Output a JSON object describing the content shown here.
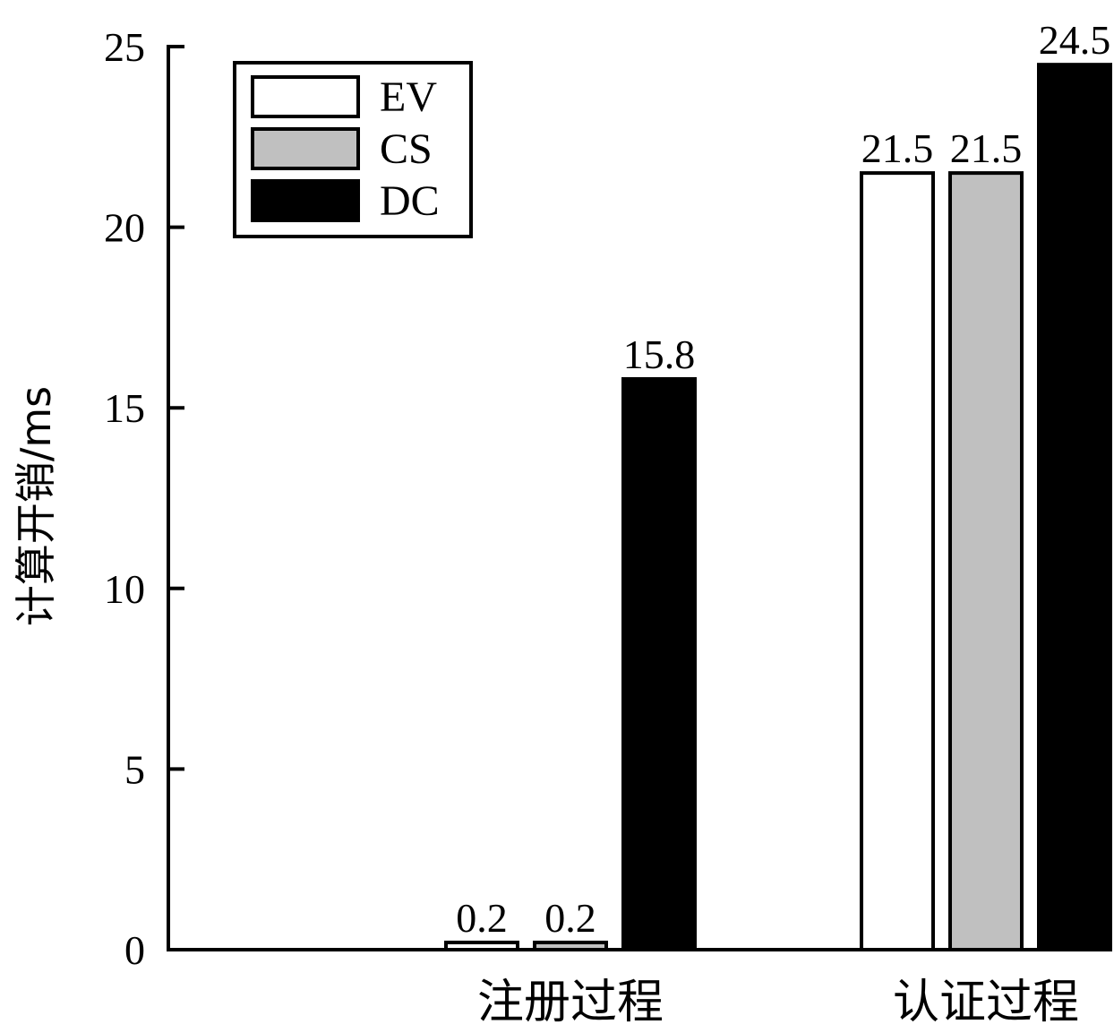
{
  "chart_data": {
    "type": "bar",
    "title": "",
    "ylabel": "计算开销/ms",
    "xlabel": "",
    "ylim": [
      0,
      25
    ],
    "yticks": [
      0,
      5,
      10,
      15,
      20,
      25
    ],
    "categories": [
      "注册过程",
      "认证过程"
    ],
    "series": [
      {
        "name": "EV",
        "values": [
          0.2,
          21.5
        ],
        "color": "#ffffff"
      },
      {
        "name": "CS",
        "values": [
          0.2,
          21.5
        ],
        "color": "#c0c0c0"
      },
      {
        "name": "DC",
        "values": [
          15.8,
          24.5
        ],
        "color": "#000000"
      }
    ],
    "data_labels": [
      [
        "0.2",
        "21.5"
      ],
      [
        "0.2",
        "21.5"
      ],
      [
        "15.8",
        "24.5"
      ]
    ],
    "legend_position": "top-left",
    "grid": false
  }
}
